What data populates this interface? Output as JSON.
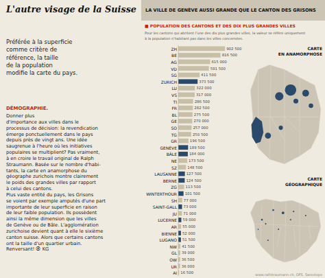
{
  "chart_data": {
    "type": "bar",
    "orientation": "horizontal",
    "title": "L'autre visage de la Suisse",
    "annotations": [
      "Préférée à la superficie\ncomme critère de\nréférence, la taille\nde la population\nmodifie la carte du pays.",
      "DÉMOGRAPHIE.",
      "Donner plus\nd'importance aux villes dans le\nprocessus de décision: la revendication\némerge ponctuellement dans le pays\ndepuis près de vingt ans. Une idée\nsaugrenue à l'heure où les initiatives\npopulaires se multiplient? Pas vraiment,\nà en croire le travail original de Ralph\nStraumann. Basée sur le nombre d'habi-\ntants, la carte en anamorphose du\ngéographe zurichois montre clairement\nle poids des grandes villes par rapport\nà celui des cantons.\nPlus vaste entité du pays, les Grisons\nse voient par exemple amputés d'une part\nimportante de leur superficie en raison\nde leur faible population. Ils possèdent\nainsi la même dimension que les villes\nde Genève ou de Bâle. L'agglomération\nzurichoise devient quant à elle le sixième\ncanton suisse. Alors que certains cantons\nont la taille d'un quartier urbain.\nRenversant! ⦿ KG",
      "LA VILLE DE GENÈVE AUSSI GRANDE QUE LE CANTON DES GRISONS",
      "■ POPULATION DES CANTONS ET DES DIX PLUS GRANDES VILLES",
      "Pour les cantons qui abritent l’une des dix plus grandes villes, la valeur se réfère uniquement",
      "à la population n’habitant pas dans les villes concernées.",
      "CARTE\nEN ANAMORPHOSE",
      "CARTE\nGÉOGRAPHIQUE",
      "www.ralfstraumann.ch, OFS, Swisstopo"
    ],
    "categories": [
      "ZH",
      "BE",
      "AG",
      "VD",
      "SG",
      "ZURICH",
      "LU",
      "VS",
      "TI",
      "FR",
      "BL",
      "GE",
      "SO",
      "TG",
      "GR",
      "GENÈVE",
      "BÂLE",
      "NE",
      "SZ",
      "LAUSANNE",
      "BERNE",
      "ZG",
      "WINTERTHOUR",
      "SH",
      "SAINT-GALL",
      "JU",
      "LUCERNE",
      "AR",
      "BIENNE",
      "LUGANO",
      "NW",
      "GL",
      "OW",
      "UR",
      "AI"
    ],
    "values": [
      902500,
      816500,
      615000,
      591500,
      411500,
      373500,
      322000,
      317000,
      286500,
      282500,
      275500,
      270000,
      257000,
      250500,
      196500,
      189500,
      184000,
      173500,
      148500,
      127500,
      124500,
      113500,
      101500,
      77000,
      73000,
      71000,
      59000,
      55000,
      52000,
      51500,
      41500,
      39000,
      36500,
      36000,
      16500
    ],
    "value_labels": [
      "902 500",
      "816 500",
      "615 000",
      "591 500",
      "411 500",
      "373 500",
      "322 000",
      "317 000",
      "286 500",
      "282 500",
      "275 500",
      "270 000",
      "257 000",
      "250 500",
      "196 500",
      "189 500",
      "184 000",
      "173 500",
      "148 500",
      "127 500",
      "124 500",
      "113 500",
      "101 500",
      "77 000",
      "73 000",
      "71 000",
      "59 000",
      "55 000",
      "52 000",
      "51 500",
      "41 500",
      "39 000",
      "36 500",
      "36 000",
      "16 500"
    ],
    "colors": [
      "#c8bfa8",
      "#c8bfa8",
      "#c8bfa8",
      "#c8bfa8",
      "#c8bfa8",
      "#2b4a6b",
      "#c8bfa8",
      "#c8bfa8",
      "#c8bfa8",
      "#c8bfa8",
      "#c8bfa8",
      "#c8bfa8",
      "#c8bfa8",
      "#c8bfa8",
      "#c8bfa8",
      "#2b4a6b",
      "#2b4a6b",
      "#c8bfa8",
      "#c8bfa8",
      "#2b4a6b",
      "#2b4a6b",
      "#c8bfa8",
      "#2b4a6b",
      "#c8bfa8",
      "#2b4a6b",
      "#c8bfa8",
      "#2b4a6b",
      "#c8bfa8",
      "#2b4a6b",
      "#2b4a6b",
      "#c8bfa8",
      "#c8bfa8",
      "#c8bfa8",
      "#c8bfa8",
      "#c8bfa8"
    ],
    "xlim": [
      0,
      1218375
    ],
    "data_labels": true,
    "tick_labels": "y",
    "grid": false
  }
}
